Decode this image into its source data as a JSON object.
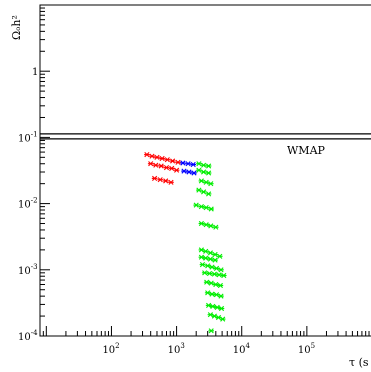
{
  "chart_data": {
    "type": "scatter",
    "title": "",
    "xlabel": "τ (s",
    "ylabel": "Ωₒh²",
    "xscale": "log",
    "yscale": "log",
    "xlim": [
      8,
      1000000
    ],
    "ylim": [
      0.0001,
      10
    ],
    "x_ticks": [
      {
        "value": 100,
        "base": "10",
        "exp": "2"
      },
      {
        "value": 1000,
        "base": "10",
        "exp": "3"
      },
      {
        "value": 10000,
        "base": "10",
        "exp": "4"
      },
      {
        "value": 100000,
        "base": "10",
        "exp": "5"
      }
    ],
    "y_ticks": [
      {
        "value": 1,
        "base": "1",
        "exp": ""
      },
      {
        "value": 0.1,
        "base": "10",
        "exp": "-1"
      },
      {
        "value": 0.01,
        "base": "10",
        "exp": "-2"
      },
      {
        "value": 0.001,
        "base": "10",
        "exp": "-3"
      },
      {
        "value": 0.0001,
        "base": "10",
        "exp": "-4"
      }
    ],
    "band": {
      "label": "WMAP",
      "y_low": 0.095,
      "y_high": 0.113
    },
    "marker": "asterisk",
    "series": [
      {
        "color": "#ff0000",
        "points": [
          [
            350,
            0.055
          ],
          [
            420,
            0.052
          ],
          [
            500,
            0.05
          ],
          [
            600,
            0.048
          ],
          [
            720,
            0.046
          ],
          [
            870,
            0.044
          ],
          [
            1050,
            0.042
          ],
          [
            400,
            0.04
          ],
          [
            480,
            0.038
          ],
          [
            580,
            0.037
          ],
          [
            700,
            0.035
          ],
          [
            840,
            0.034
          ],
          [
            1000,
            0.032
          ],
          [
            460,
            0.024
          ],
          [
            560,
            0.023
          ],
          [
            680,
            0.022
          ],
          [
            820,
            0.021
          ]
        ]
      },
      {
        "color": "#0000ff",
        "points": [
          [
            1250,
            0.041
          ],
          [
            1500,
            0.04
          ],
          [
            1800,
            0.039
          ],
          [
            1300,
            0.031
          ],
          [
            1550,
            0.03
          ],
          [
            1850,
            0.029
          ]
        ]
      },
      {
        "color": "#00ee00",
        "points": [
          [
            2200,
            0.04
          ],
          [
            2600,
            0.038
          ],
          [
            3100,
            0.037
          ],
          [
            2200,
            0.032
          ],
          [
            2600,
            0.03
          ],
          [
            3100,
            0.029
          ],
          [
            2400,
            0.022
          ],
          [
            2850,
            0.021
          ],
          [
            3350,
            0.02
          ],
          [
            2200,
            0.016
          ],
          [
            2600,
            0.015
          ],
          [
            3100,
            0.014
          ],
          [
            2000,
            0.0095
          ],
          [
            2400,
            0.009
          ],
          [
            2850,
            0.0087
          ],
          [
            3400,
            0.0083
          ],
          [
            2400,
            0.005
          ],
          [
            2850,
            0.0048
          ],
          [
            3350,
            0.0046
          ],
          [
            4000,
            0.0044
          ],
          [
            2400,
            0.002
          ],
          [
            2800,
            0.0019
          ],
          [
            3300,
            0.0018
          ],
          [
            3900,
            0.0017
          ],
          [
            4600,
            0.0016
          ],
          [
            2400,
            0.00155
          ],
          [
            2800,
            0.0015
          ],
          [
            3300,
            0.00145
          ],
          [
            3900,
            0.0014
          ],
          [
            2500,
            0.0012
          ],
          [
            3000,
            0.00115
          ],
          [
            3500,
            0.0011
          ],
          [
            4100,
            0.00105
          ],
          [
            4800,
            0.001
          ],
          [
            2700,
            0.0009
          ],
          [
            3200,
            0.00088
          ],
          [
            3800,
            0.00086
          ],
          [
            4500,
            0.00084
          ],
          [
            5300,
            0.00082
          ],
          [
            2900,
            0.00065
          ],
          [
            3400,
            0.00063
          ],
          [
            4000,
            0.0006
          ],
          [
            4700,
            0.00058
          ],
          [
            3000,
            0.00045
          ],
          [
            3500,
            0.00043
          ],
          [
            4100,
            0.00042
          ],
          [
            4800,
            0.0004
          ],
          [
            3100,
            0.00029
          ],
          [
            3600,
            0.00028
          ],
          [
            4200,
            0.00027
          ],
          [
            4900,
            0.00026
          ],
          [
            3300,
            0.00021
          ],
          [
            3800,
            0.0002
          ],
          [
            4400,
            0.00019
          ],
          [
            5100,
            0.00018
          ],
          [
            3400,
            0.00012
          ]
        ]
      }
    ]
  }
}
